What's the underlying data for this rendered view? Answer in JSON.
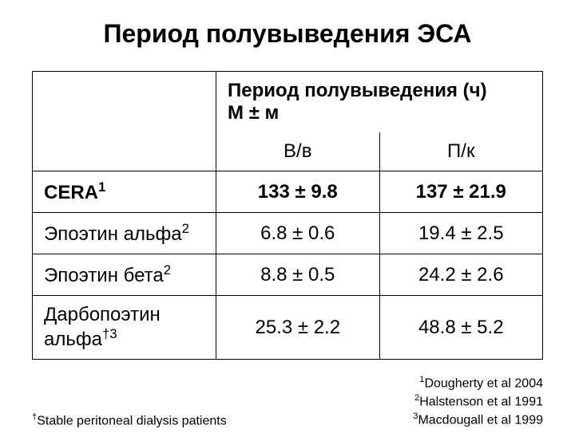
{
  "title": "Период полувыведения ЭСА",
  "table": {
    "header_line1": "Период полувыведения (ч)",
    "header_line2": "М ± м",
    "sub_iv": "В/в",
    "sub_sc": "П/к",
    "rows": [
      {
        "name_html": "CERA<sup>1</sup>",
        "iv": "133 ± 9.8",
        "sc": "137 ± 21.9",
        "bold": true
      },
      {
        "name_html": "Эпоэтин альфа<sup>2</sup>",
        "iv": "6.8 ± 0.6",
        "sc": "19.4 ± 2.5",
        "bold": false
      },
      {
        "name_html": "Эпоэтин бета<sup>2</sup>",
        "iv": "8.8 ± 0.5",
        "sc": "24.2 ± 2.6",
        "bold": false
      },
      {
        "name_html": "Дарбопоэтин альфа<sup>†3</sup>",
        "iv": "25.3 ± 2.2",
        "sc": "48.8 ± 5.2",
        "bold": false
      }
    ]
  },
  "footnote_left_html": "<sup>†</sup>Stable peritoneal dialysis patients",
  "references": [
    "<sup>1</sup>Dougherty et al 2004",
    "<sup>2</sup>Halstenson et al 1991",
    "<sup>3</sup>Macdougall et al 1999"
  ]
}
